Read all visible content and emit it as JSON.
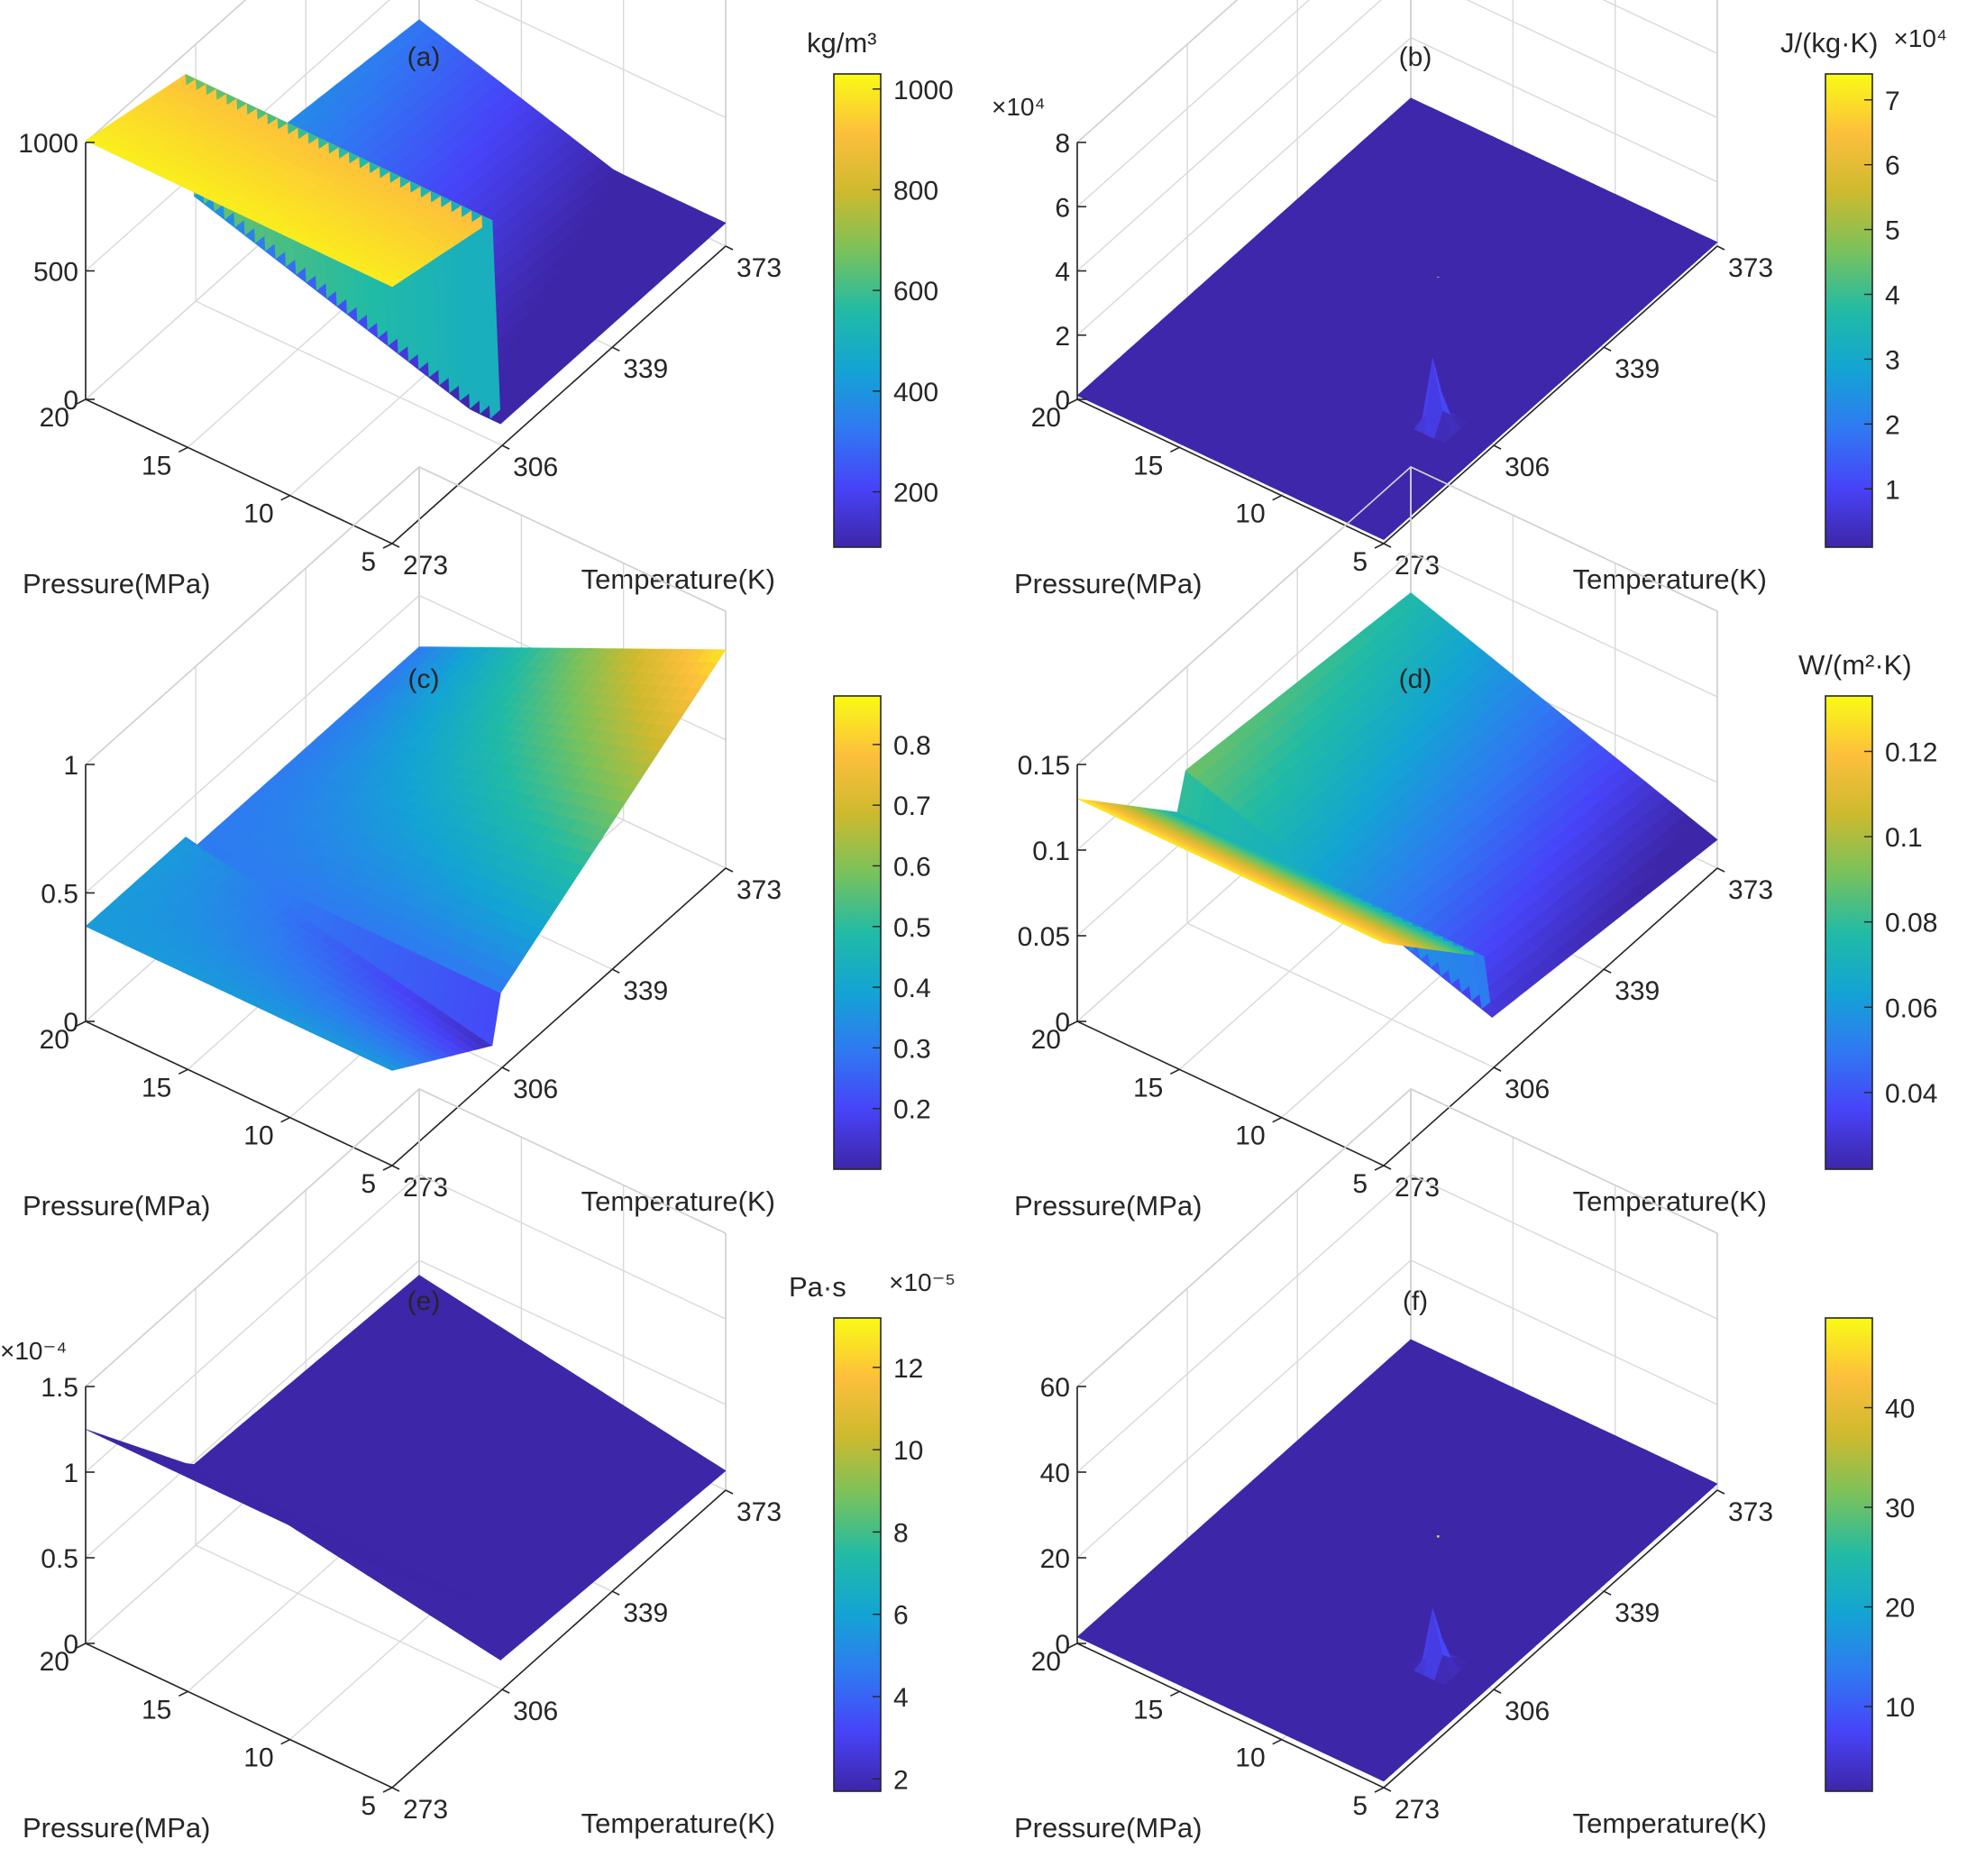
{
  "figure": {
    "x_axis_label": "Temperature(K)",
    "y_axis_label": "Pressure(MPa)",
    "x_ticks": [
      "273",
      "306",
      "339",
      "373"
    ],
    "y_ticks": [
      "5",
      "10",
      "15",
      "20"
    ],
    "colormap": [
      "#3e26a8",
      "#4743f8",
      "#2f79f2",
      "#13a4d4",
      "#21bba5",
      "#78c25c",
      "#cdba2e",
      "#fdbf3c",
      "#f9fb14"
    ]
  },
  "chart_data": [
    {
      "id": "a",
      "panel_label": "(a)",
      "type": "surface",
      "x": [
        273,
        306,
        339,
        373
      ],
      "y": [
        5,
        10,
        15,
        20
      ],
      "zlim": [
        0,
        1000
      ],
      "z_ticks": [
        "0",
        "500",
        "1000"
      ],
      "z_multiplier": "",
      "colorbar": {
        "unit": "kg/m³",
        "multiplier": "",
        "ticks": [
          "200",
          "400",
          "600",
          "800",
          "1000"
        ],
        "range": [
          90,
          1030
        ],
        "tick_values": [
          200,
          400,
          600,
          800,
          1000
        ]
      },
      "description_values": {
        "liquid_density_at_273K_20MPa": 1000,
        "density_at_373K_5MPa": 100
      }
    },
    {
      "id": "b",
      "panel_label": "(b)",
      "type": "surface",
      "x": [
        273,
        306,
        339,
        373
      ],
      "y": [
        5,
        10,
        15,
        20
      ],
      "zlim": [
        0,
        8
      ],
      "z_ticks": [
        "0",
        "2",
        "4",
        "6",
        "8"
      ],
      "z_multiplier": "×10⁴",
      "colorbar": {
        "unit": "J/(kg·K)",
        "multiplier": "×10⁴",
        "ticks": [
          "1",
          "2",
          "3",
          "4",
          "5",
          "6",
          "7"
        ],
        "range": [
          0.1,
          7.4
        ],
        "tick_values": [
          1,
          2,
          3,
          4,
          5,
          6,
          7
        ]
      },
      "peak": {
        "x": 304,
        "y": 7.4,
        "z": 4.7
      }
    },
    {
      "id": "c",
      "panel_label": "(c)",
      "type": "surface",
      "x": [
        273,
        306,
        339,
        373
      ],
      "y": [
        5,
        10,
        15,
        20
      ],
      "zlim": [
        0,
        1
      ],
      "z_ticks": [
        "0",
        "0.5",
        "1"
      ],
      "z_multiplier": "",
      "colorbar": {
        "unit": "",
        "multiplier": "",
        "ticks": [
          "0.2",
          "0.3",
          "0.4",
          "0.5",
          "0.6",
          "0.7",
          "0.8"
        ],
        "range": [
          0.1,
          0.88
        ],
        "tick_values": [
          0.2,
          0.3,
          0.4,
          0.5,
          0.6,
          0.7,
          0.8
        ]
      }
    },
    {
      "id": "d",
      "panel_label": "(d)",
      "type": "surface",
      "x": [
        273,
        306,
        339,
        373
      ],
      "y": [
        5,
        10,
        15,
        20
      ],
      "zlim": [
        0,
        0.15
      ],
      "z_ticks": [
        "0",
        "0.05",
        "0.1",
        "0.15"
      ],
      "z_multiplier": "",
      "colorbar": {
        "unit": "W/(m²·K)",
        "multiplier": "",
        "ticks": [
          "0.04",
          "0.06",
          "0.08",
          "0.1",
          "0.12"
        ],
        "range": [
          0.022,
          0.133
        ],
        "tick_values": [
          0.04,
          0.06,
          0.08,
          0.1,
          0.12
        ]
      }
    },
    {
      "id": "e",
      "panel_label": "(e)",
      "type": "surface",
      "x": [
        273,
        306,
        339,
        373
      ],
      "y": [
        5,
        10,
        15,
        20
      ],
      "zlim": [
        0,
        1.5
      ],
      "z_ticks": [
        "0",
        "0.5",
        "1",
        "1.5"
      ],
      "z_multiplier": "×10⁻⁴",
      "colorbar": {
        "unit": "Pa·s",
        "multiplier": "×10⁻⁵",
        "ticks": [
          "2",
          "4",
          "6",
          "8",
          "10",
          "12"
        ],
        "range": [
          1.7,
          13.2
        ],
        "tick_values": [
          2,
          4,
          6,
          8,
          10,
          12
        ]
      }
    },
    {
      "id": "f",
      "panel_label": "(f)",
      "type": "surface",
      "x": [
        273,
        306,
        339,
        373
      ],
      "y": [
        5,
        10,
        15,
        20
      ],
      "zlim": [
        0,
        60
      ],
      "z_ticks": [
        "0",
        "20",
        "40",
        "60"
      ],
      "z_multiplier": "",
      "colorbar": {
        "unit": "",
        "multiplier": "",
        "ticks": [
          "10",
          "20",
          "30",
          "40"
        ],
        "range": [
          1.5,
          49
        ],
        "tick_values": [
          10,
          20,
          30,
          40
        ]
      },
      "peak": {
        "x": 304,
        "y": 7.4,
        "z": 32
      }
    }
  ]
}
